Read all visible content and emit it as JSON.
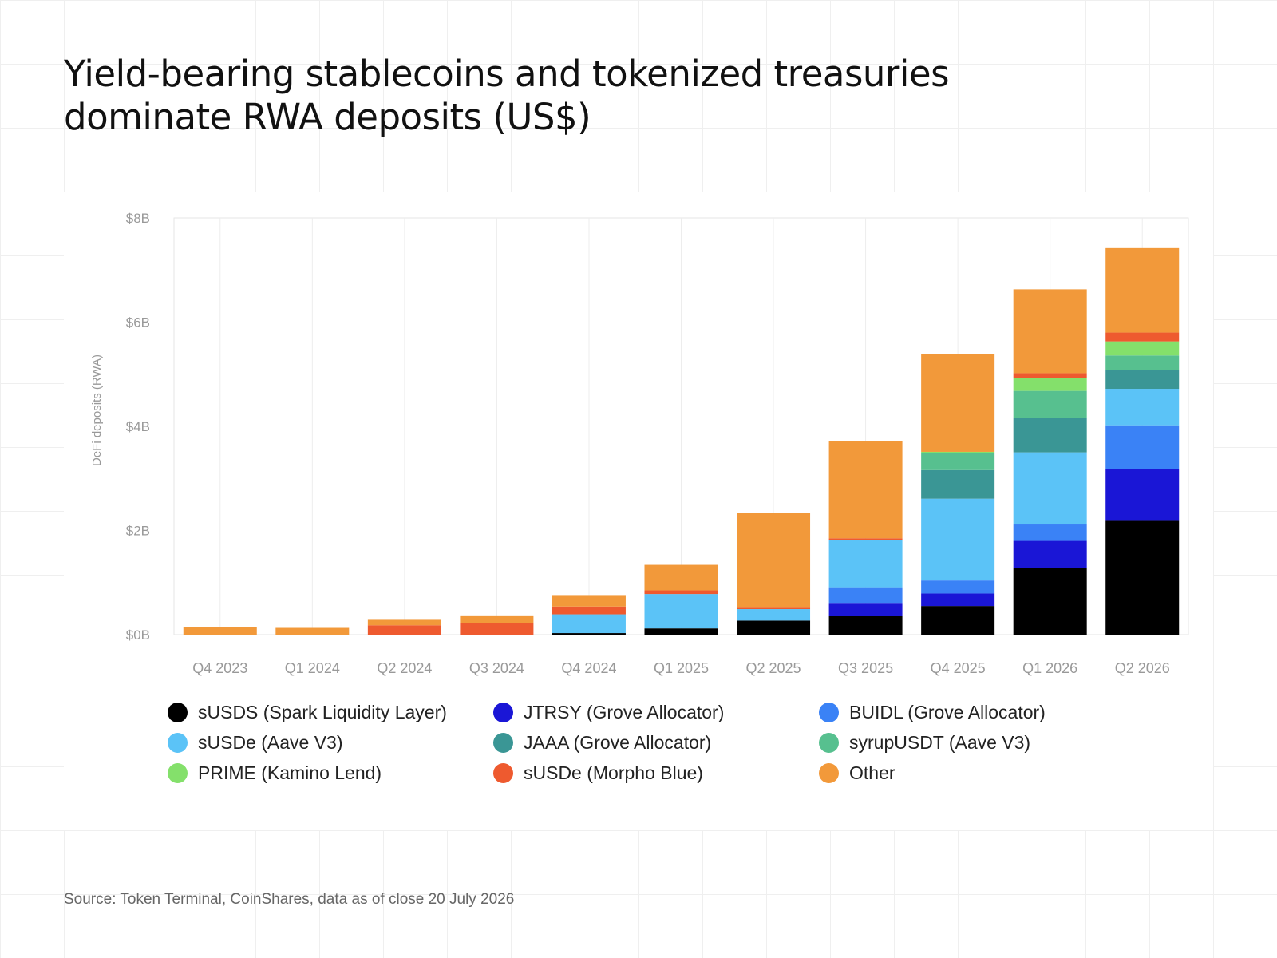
{
  "title_lines": [
    "Yield-bearing stablecoins and tokenized treasuries",
    "dominate RWA deposits (US$)"
  ],
  "source": "Source: Token Terminal, CoinShares, data as of close 20 July 2026",
  "chart_data": {
    "type": "bar",
    "stacked": true,
    "title": "Yield-bearing stablecoins and tokenized treasuries dominate RWA deposits (US$)",
    "ylabel": "DeFi deposits (RWA)",
    "xlabel": "",
    "ylim": [
      0,
      8
    ],
    "yunit": "B",
    "y_ticks": [
      0,
      2,
      4,
      6,
      8
    ],
    "y_tick_labels": [
      "$0B",
      "$2B",
      "$4B",
      "$6B",
      "$8B"
    ],
    "grid": "vertical",
    "legend_position": "bottom",
    "categories": [
      "Q4 2023",
      "Q1 2024",
      "Q2 2024",
      "Q3 2024",
      "Q4 2024",
      "Q1 2025",
      "Q2 2025",
      "Q3 2025",
      "Q4 2025",
      "Q1 2026",
      "Q2 2026"
    ],
    "series": [
      {
        "name": "sUSDS (Spark Liquidity Layer)",
        "color": "#000000",
        "values": [
          0,
          0,
          0,
          0,
          0.03,
          0.12,
          0.27,
          0.36,
          0.55,
          1.28,
          2.2
        ]
      },
      {
        "name": "JTRSY (Grove Allocator)",
        "color": "#1a16d6",
        "values": [
          0,
          0,
          0,
          0,
          0,
          0,
          0,
          0.25,
          0.24,
          0.52,
          0.98
        ]
      },
      {
        "name": "BUIDL (Grove Allocator)",
        "color": "#3a82f6",
        "values": [
          0,
          0,
          0,
          0,
          0,
          0,
          0,
          0.3,
          0.25,
          0.33,
          0.84
        ]
      },
      {
        "name": "sUSDe (Aave V3)",
        "color": "#5bc3f7",
        "values": [
          0,
          0,
          0,
          0,
          0.36,
          0.66,
          0.22,
          0.9,
          1.57,
          1.37,
          0.7
        ]
      },
      {
        "name": "JAAA (Grove Allocator)",
        "color": "#3a9695",
        "values": [
          0,
          0,
          0,
          0,
          0,
          0,
          0,
          0,
          0.55,
          0.66,
          0.36
        ]
      },
      {
        "name": "syrupUSDT (Aave V3)",
        "color": "#57c08f",
        "values": [
          0,
          0,
          0,
          0,
          0,
          0,
          0,
          0,
          0.32,
          0.52,
          0.28
        ]
      },
      {
        "name": "PRIME (Kamino Lend)",
        "color": "#84e06b",
        "values": [
          0,
          0,
          0,
          0,
          0,
          0,
          0,
          0,
          0.03,
          0.24,
          0.27
        ]
      },
      {
        "name": "sUSDe (Morpho Blue)",
        "color": "#ee5a2f",
        "values": [
          0,
          0,
          0.18,
          0.22,
          0.15,
          0.07,
          0.04,
          0.04,
          0,
          0.1,
          0.17
        ]
      },
      {
        "name": "Other",
        "color": "#f2993a",
        "values": [
          0.15,
          0.13,
          0.12,
          0.15,
          0.22,
          0.49,
          1.8,
          1.86,
          1.88,
          1.61,
          1.62
        ]
      }
    ]
  }
}
